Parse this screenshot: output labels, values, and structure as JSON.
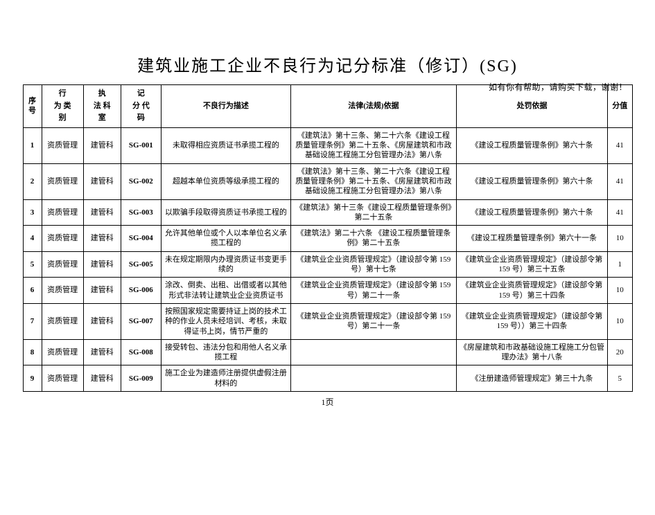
{
  "hint_text": "如有你有帮助，请购买下载，谢谢！",
  "page_title": "建筑业施工企业不良行为记分标准（修订）(SG)",
  "pager_text": "1页",
  "columns": {
    "seq": "序号",
    "category_line1": "行",
    "category_line2": "为    类",
    "category_line3": "别",
    "dept_line1": "执",
    "dept_line2": "法    科",
    "dept_line3": "室",
    "code_line1": "记",
    "code_line2": "分    代",
    "code_line3": "码",
    "desc": "不良行为描述",
    "law": "法律(法规)依据",
    "penalty": "处罚依据",
    "score": "分值"
  },
  "rows": [
    {
      "seq": "1",
      "category": "资质管理",
      "dept": "建管科",
      "code": "SG-001",
      "desc": "未取得相应资质证书承揽工程的",
      "law": "《建筑法》第十三条、第二十六条《建设工程质量管理条例》第二十五条、《房屋建筑和市政基础设施工程施工分包管理办法》第八条",
      "penalty": "《建设工程质量管理条例》第六十条",
      "score": "41"
    },
    {
      "seq": "2",
      "category": "资质管理",
      "dept": "建管科",
      "code": "SG-002",
      "desc": "超越本单位资质等级承揽工程的",
      "law": "《建筑法》第十三条、第二十六条《建设工程质量管理条例》第二十五条、《房屋建筑和市政基础设施工程施工分包管理办法》第八条",
      "penalty": "《建设工程质量管理条例》第六十条",
      "score": "41"
    },
    {
      "seq": "3",
      "category": "资质管理",
      "dept": "建管科",
      "code": "SG-003",
      "desc": "以欺骗手段取得资质证书承揽工程的",
      "law": "《建筑法》第十三条《建设工程质量管理条例》第二十五条",
      "penalty": "《建设工程质量管理条例》第六十条",
      "score": "41"
    },
    {
      "seq": "4",
      "category": "资质管理",
      "dept": "建管科",
      "code": "SG-004",
      "desc": "允许其他单位或个人以本单位名义承揽工程的",
      "law": "《建筑法》第二十六条\n《建设工程质量管理条例》第二十五条",
      "penalty": "《建设工程质量管理条例》第六十一条",
      "score": "10"
    },
    {
      "seq": "5",
      "category": "资质管理",
      "dept": "建管科",
      "code": "SG-005",
      "desc": "未在规定期限内办理资质证书变更手续的",
      "law": "《建筑业企业资质管理规定》（建设部令第 159 号）第十七条",
      "penalty": "《建筑业企业资质管理规定》（建设部令第 159 号）第三十五条",
      "score": "1"
    },
    {
      "seq": "6",
      "category": "资质管理",
      "dept": "建管科",
      "code": "SG-006",
      "desc": "涂改、倒卖、出租、出借或者以其他形式非法转让建筑业企业资质证书",
      "law": "《建筑业企业资质管理规定》（建设部令第 159 号）第二十一条",
      "penalty": "《建筑业企业资质管理规定》（建设部令第 159 号）第三十四条",
      "score": "10"
    },
    {
      "seq": "7",
      "category": "资质管理",
      "dept": "建管科",
      "code": "SG-007",
      "desc": "按照国家规定需要持证上岗的技术工种的作业人员未经培训、考核，未取得证书上岗，情节严重的",
      "law": "《建筑业企业资质管理规定》（建设部令第 159 号）第二十一条",
      "penalty": "《建筑业企业资质管理规定》（建设部令第 159 号））第三十四条",
      "score": "10"
    },
    {
      "seq": "8",
      "category": "资质管理",
      "dept": "建管科",
      "code": "SG-008",
      "desc": "接受转包、违法分包和用他人名义承揽工程",
      "law": "",
      "penalty": "《房屋建筑和市政基础设施工程施工分包管理办法》第十八条",
      "score": "20"
    },
    {
      "seq": "9",
      "category": "资质管理",
      "dept": "建管科",
      "code": "SG-009",
      "desc": "施工企业为建造师注册提供虚假注册材料的",
      "law": "",
      "penalty": "《注册建造师管理规定》第三十九条",
      "score": "5"
    }
  ]
}
